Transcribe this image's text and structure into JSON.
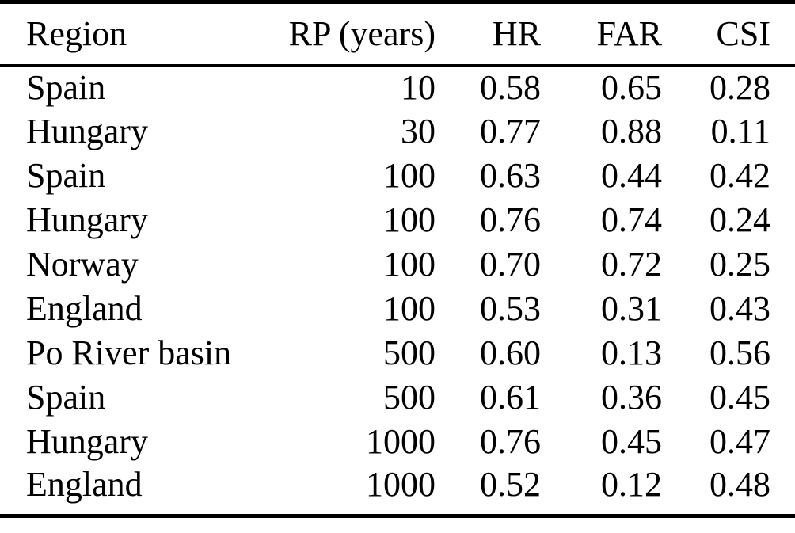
{
  "table": {
    "columns": [
      {
        "key": "region",
        "label": "Region",
        "align": "left"
      },
      {
        "key": "rp_years",
        "label": "RP (years)",
        "align": "right"
      },
      {
        "key": "hr",
        "label": "HR",
        "align": "right"
      },
      {
        "key": "far",
        "label": "FAR",
        "align": "right"
      },
      {
        "key": "csi",
        "label": "CSI",
        "align": "right"
      }
    ],
    "rows": [
      [
        "Spain",
        "10",
        "0.58",
        "0.65",
        "0.28"
      ],
      [
        "Hungary",
        "30",
        "0.77",
        "0.88",
        "0.11"
      ],
      [
        "Spain",
        "100",
        "0.63",
        "0.44",
        "0.42"
      ],
      [
        "Hungary",
        "100",
        "0.76",
        "0.74",
        "0.24"
      ],
      [
        "Norway",
        "100",
        "0.70",
        "0.72",
        "0.25"
      ],
      [
        "England",
        "100",
        "0.53",
        "0.31",
        "0.43"
      ],
      [
        "Po River basin",
        "500",
        "0.60",
        "0.13",
        "0.56"
      ],
      [
        "Spain",
        "500",
        "0.61",
        "0.36",
        "0.45"
      ],
      [
        "Hungary",
        "1000",
        "0.76",
        "0.45",
        "0.47"
      ],
      [
        "England",
        "1000",
        "0.52",
        "0.12",
        "0.48"
      ]
    ]
  },
  "colors": {
    "rule": "#000000",
    "text": "#000000",
    "background": "#ffffff"
  },
  "chart_data": {
    "type": "table",
    "columns": [
      "Region",
      "RP (years)",
      "HR",
      "FAR",
      "CSI"
    ],
    "rows": [
      [
        "Spain",
        10,
        0.58,
        0.65,
        0.28
      ],
      [
        "Hungary",
        30,
        0.77,
        0.88,
        0.11
      ],
      [
        "Spain",
        100,
        0.63,
        0.44,
        0.42
      ],
      [
        "Hungary",
        100,
        0.76,
        0.74,
        0.24
      ],
      [
        "Norway",
        100,
        0.7,
        0.72,
        0.25
      ],
      [
        "England",
        100,
        0.53,
        0.31,
        0.43
      ],
      [
        "Po River basin",
        500,
        0.6,
        0.13,
        0.56
      ],
      [
        "Spain",
        500,
        0.61,
        0.36,
        0.45
      ],
      [
        "Hungary",
        1000,
        0.76,
        0.45,
        0.47
      ],
      [
        "England",
        1000,
        0.52,
        0.12,
        0.48
      ]
    ]
  }
}
